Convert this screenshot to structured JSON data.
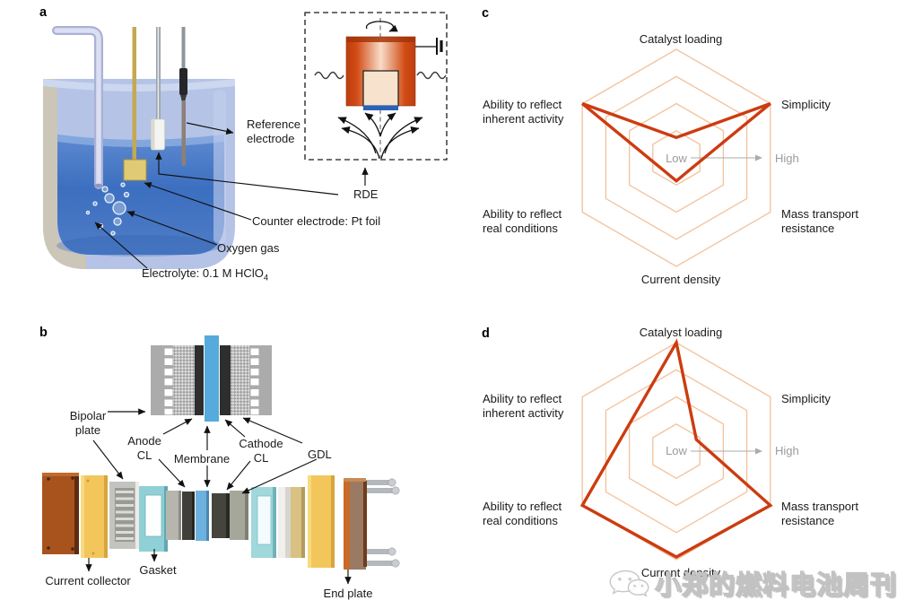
{
  "panel_letters": {
    "a": "a",
    "b": "b",
    "c": "c",
    "d": "d"
  },
  "panel_a": {
    "labels": {
      "reference_electrode": "Reference electrode",
      "rde": "RDE",
      "counter_electrode": "Counter electrode: Pt foil",
      "oxygen_gas": "Oxygen gas",
      "electrolyte": "Electrolyte: 0.1 M HClO",
      "electrolyte_subscript": "4"
    }
  },
  "panel_b": {
    "labels": {
      "bipolar_plate": "Bipolar plate",
      "anode_cl": "Anode CL",
      "membrane": "Membrane",
      "cathode_cl": "Cathode CL",
      "gdl": "GDL",
      "current_collector": "Current collector",
      "gasket": "Gasket",
      "end_plate": "End plate"
    }
  },
  "chart_data": [
    {
      "panel": "c",
      "type": "radar",
      "grid": "hexagonal, 4 concentric rings",
      "axes": [
        "Catalyst loading",
        "Simplicity",
        "Mass transport resistance",
        "Current density",
        "Ability to reflect real conditions",
        "Ability to reflect inherent activity"
      ],
      "series": [
        {
          "values": [
            0.75,
            4,
            0.7,
            0.85,
            0.7,
            4
          ]
        }
      ],
      "scale": {
        "min": 0,
        "max": 4,
        "rings": 4,
        "min_label": "Low",
        "max_label": "High"
      },
      "ring_color": "#f3c19b",
      "line_color": "#cc3c10"
    },
    {
      "panel": "d",
      "type": "radar",
      "grid": "hexagonal, 4 concentric rings",
      "axes": [
        "Catalyst loading",
        "Simplicity",
        "Mass transport resistance",
        "Current density",
        "Ability to reflect real conditions",
        "Ability to reflect inherent activity"
      ],
      "series": [
        {
          "values": [
            4,
            0.85,
            4,
            3.9,
            4,
            2
          ]
        }
      ],
      "scale": {
        "min": 0,
        "max": 4,
        "rings": 4,
        "min_label": "Low",
        "max_label": "High"
      },
      "ring_color": "#f3c19b",
      "line_color": "#cc3c10"
    }
  ],
  "watermark": {
    "text": "小郑的燃料电池周刊",
    "icon": "wechat-logo-icon"
  },
  "colors": {
    "radar_grid": "#f3c19b",
    "radar_series": "#cc3c10",
    "scale_text": "#9b9b9b",
    "electrolyte_blue": "#3c6fc0",
    "beaker_glass": "#b5c3e6",
    "membrane_blue": "#56aadc",
    "catalyst_layer_dark": "#2e2e2e",
    "copper_end_plate": "#a8531e",
    "collector_yellow": "#f3c65c",
    "gasket_teal": "#8ed0d5",
    "rde_body_orange": "#d14c15",
    "rde_disk_blue": "#2a62b8"
  }
}
